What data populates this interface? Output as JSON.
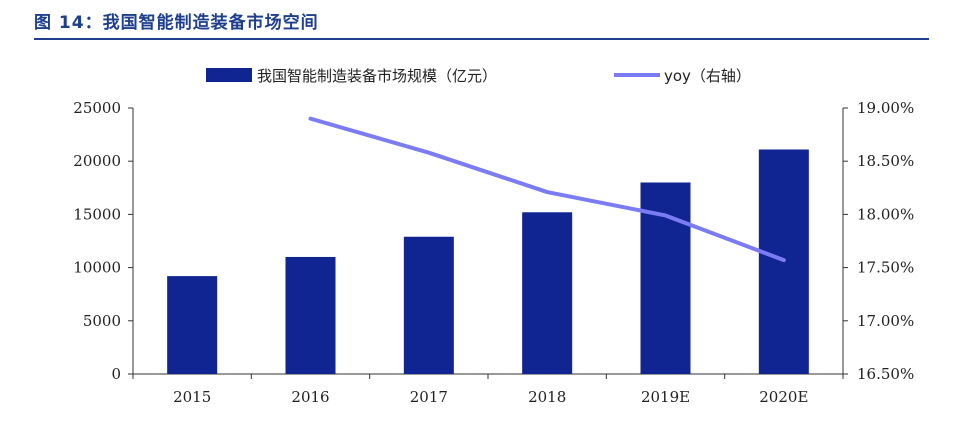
{
  "title": "图 14：我国智能制造装备市场空间",
  "chart_data": {
    "type": "bar",
    "categories": [
      "2015",
      "2016",
      "2017",
      "2018",
      "2019E",
      "2020E"
    ],
    "series": [
      {
        "name": "我国智能制造装备市场规模（亿元）",
        "type": "bar",
        "axis": "left",
        "values": [
          9200,
          11000,
          12900,
          15200,
          18000,
          21100
        ],
        "color": "#112592"
      },
      {
        "name": "yoy（右轴）",
        "type": "line",
        "axis": "right",
        "values": [
          null,
          18.9,
          18.58,
          18.21,
          17.99,
          17.57
        ],
        "color": "#7b7cf3"
      }
    ],
    "y_left": {
      "min": 0,
      "max": 25000,
      "ticks": [
        "0",
        "5000",
        "10000",
        "15000",
        "20000",
        "25000"
      ]
    },
    "y_right": {
      "min": 16.5,
      "max": 19.0,
      "ticks": [
        "16.50%",
        "17.00%",
        "17.50%",
        "18.00%",
        "18.50%",
        "19.00%"
      ]
    },
    "legend_position": "top",
    "grid": false
  },
  "colors": {
    "title": "#1d3f8c",
    "bar": "#112592",
    "line": "#7b7cf3"
  }
}
